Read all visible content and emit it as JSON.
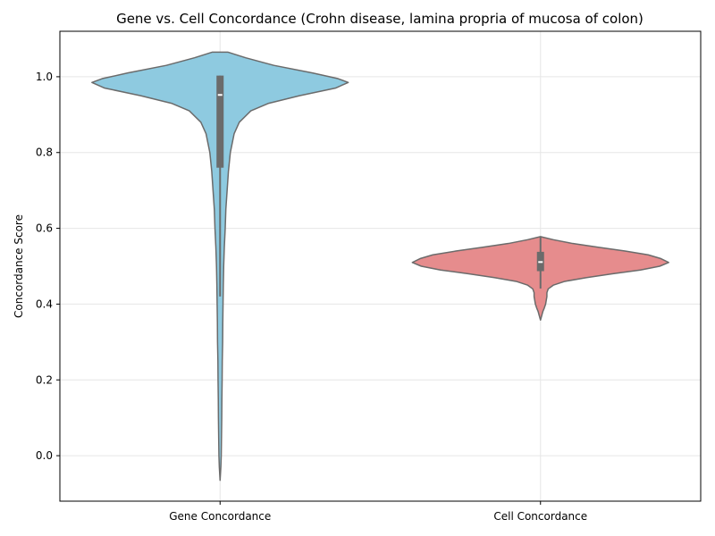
{
  "chart_data": {
    "type": "violin",
    "title": "Gene vs. Cell Concordance (Crohn disease, lamina propria of mucosa of colon)",
    "xlabel": "",
    "ylabel": "Concordance Score",
    "categories": [
      "Gene Concordance",
      "Cell Concordance"
    ],
    "ylim": [
      -0.12,
      1.12
    ],
    "yticks": [
      "0.0",
      "0.2",
      "0.4",
      "0.6",
      "0.8",
      "1.0"
    ],
    "grid": true,
    "colors": {
      "Gene Concordance": "#8ecae0",
      "Cell Concordance": "#e68c8d",
      "outline": "#6b6b6b",
      "box": "#6b6b6b",
      "median": "#ffffff",
      "grid": "#e6e6e6"
    },
    "violins": [
      {
        "category": "Gene Concordance",
        "min": -0.065,
        "max": 1.065,
        "box": {
          "q1": 0.76,
          "median": 0.952,
          "q3": 1.003,
          "whisker_low": 0.42,
          "whisker_high": 1.003
        },
        "profile": [
          [
            1.065,
            0.06
          ],
          [
            1.05,
            0.2
          ],
          [
            1.03,
            0.42
          ],
          [
            1.01,
            0.72
          ],
          [
            0.995,
            0.92
          ],
          [
            0.985,
            1.0
          ],
          [
            0.97,
            0.9
          ],
          [
            0.95,
            0.62
          ],
          [
            0.93,
            0.38
          ],
          [
            0.91,
            0.24
          ],
          [
            0.88,
            0.15
          ],
          [
            0.85,
            0.11
          ],
          [
            0.8,
            0.08
          ],
          [
            0.75,
            0.065
          ],
          [
            0.7,
            0.055
          ],
          [
            0.65,
            0.045
          ],
          [
            0.6,
            0.04
          ],
          [
            0.55,
            0.033
          ],
          [
            0.5,
            0.028
          ],
          [
            0.45,
            0.025
          ],
          [
            0.4,
            0.023
          ],
          [
            0.35,
            0.021
          ],
          [
            0.3,
            0.02
          ],
          [
            0.25,
            0.017
          ],
          [
            0.2,
            0.016
          ],
          [
            0.15,
            0.014
          ],
          [
            0.1,
            0.013
          ],
          [
            0.05,
            0.011
          ],
          [
            0.0,
            0.009
          ],
          [
            -0.03,
            0.006
          ],
          [
            -0.065,
            0.0
          ]
        ]
      },
      {
        "category": "Cell Concordance",
        "min": 0.358,
        "max": 0.578,
        "box": {
          "q1": 0.487,
          "median": 0.511,
          "q3": 0.538,
          "whisker_low": 0.441,
          "whisker_high": 0.578
        },
        "profile": [
          [
            0.578,
            0.0
          ],
          [
            0.57,
            0.1
          ],
          [
            0.56,
            0.25
          ],
          [
            0.55,
            0.45
          ],
          [
            0.54,
            0.66
          ],
          [
            0.53,
            0.84
          ],
          [
            0.52,
            0.94
          ],
          [
            0.51,
            1.0
          ],
          [
            0.5,
            0.93
          ],
          [
            0.49,
            0.78
          ],
          [
            0.48,
            0.56
          ],
          [
            0.47,
            0.36
          ],
          [
            0.46,
            0.19
          ],
          [
            0.45,
            0.1
          ],
          [
            0.44,
            0.06
          ],
          [
            0.43,
            0.05
          ],
          [
            0.42,
            0.05
          ],
          [
            0.41,
            0.045
          ],
          [
            0.4,
            0.04
          ],
          [
            0.39,
            0.03
          ],
          [
            0.38,
            0.018
          ],
          [
            0.37,
            0.01
          ],
          [
            0.358,
            0.0
          ]
        ]
      }
    ]
  }
}
